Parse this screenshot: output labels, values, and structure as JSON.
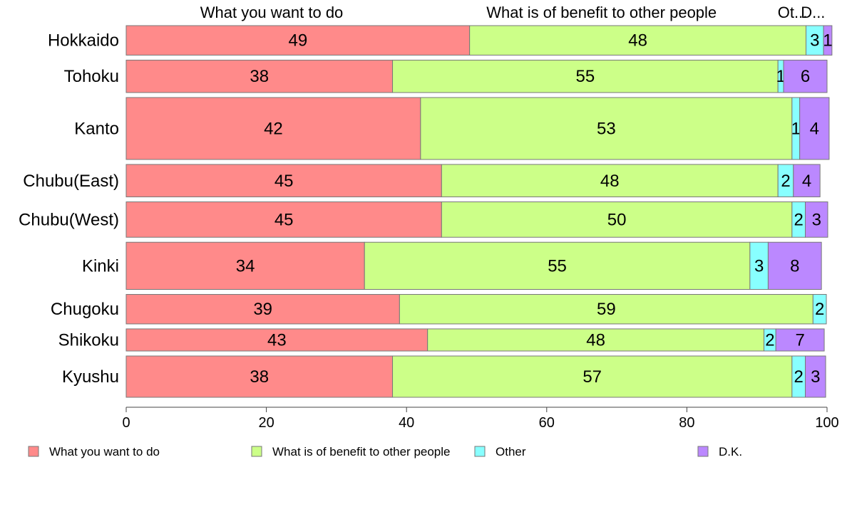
{
  "chart_data": {
    "type": "bar",
    "orientation": "horizontal",
    "stacked": true,
    "categories": [
      "Hokkaido",
      "Tohoku",
      "Kanto",
      "Chubu(East)",
      "Chubu(West)",
      "Kinki",
      "Chugoku",
      "Shikoku",
      "Kyushu"
    ],
    "series": [
      {
        "name": "What you want to do",
        "color": "#ff8a8a",
        "values": [
          49,
          38,
          42,
          45,
          45,
          34,
          39,
          43,
          38
        ],
        "labels": [
          "49",
          "38",
          "42",
          "45",
          "45",
          "34",
          "39",
          "43",
          "38"
        ]
      },
      {
        "name": "What is of benefit to other people",
        "color": "#ccff88",
        "values": [
          48,
          55,
          53,
          48,
          50,
          55,
          59,
          48,
          57
        ],
        "labels": [
          "48",
          "55",
          "53",
          "48",
          "50",
          "55",
          "59",
          "48",
          "57"
        ]
      },
      {
        "name": "Other",
        "color": "#88ffff",
        "values": [
          2.5,
          0.8,
          1.1,
          2.2,
          1.9,
          2.6,
          1.9,
          1.7,
          1.9
        ],
        "labels": [
          "3",
          "1",
          "1",
          "2",
          "2",
          "3",
          "2",
          "2",
          "2"
        ]
      },
      {
        "name": "D.K.",
        "color": "#bb88ff",
        "values": [
          1.2,
          6.2,
          4.2,
          3.8,
          3.2,
          7.6,
          0,
          6.9,
          2.9
        ],
        "labels": [
          "1",
          "6",
          "4",
          "4",
          "3",
          "8",
          "",
          "7",
          "3"
        ]
      }
    ],
    "column_headers": [
      "What you want to do",
      "What is of benefit to other people",
      "Ot...",
      "D..."
    ],
    "bar_weights": [
      1.0,
      1.1,
      2.1,
      1.1,
      1.2,
      1.6,
      1.0,
      0.75,
      1.4
    ],
    "xlim": [
      0,
      100
    ],
    "xticks": [
      0,
      20,
      40,
      60,
      80,
      100
    ],
    "grid": false,
    "legend_position": "bottom"
  }
}
